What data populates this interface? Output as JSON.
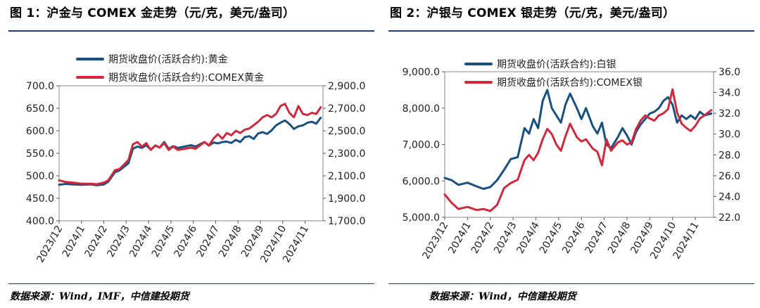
{
  "colors": {
    "blue": "#1a5080",
    "red": "#cc2a3e",
    "rule": "#1b3f73"
  },
  "left": {
    "title": "图 1：沪金与 COMEX 金走势（元/克，美元/盎司）",
    "source": "数据来源：Wind，IMF，中信建投期货"
  },
  "right": {
    "title": "图 2：沪银与 COMEX 银走势（元/克，美元/盎司）",
    "source": "数据来源：Wind，中信建投期货"
  },
  "chart_data": [
    {
      "type": "line",
      "x_tick_labels": [
        "2023/12",
        "2024/1",
        "2024/2",
        "2024/3",
        "2024/4",
        "2024/5",
        "2024/6",
        "2024/7",
        "2024/8",
        "2024/9",
        "2024/10",
        "2024/11"
      ],
      "xlim": [
        0,
        11.8
      ],
      "ylim_left": [
        400,
        700
      ],
      "yticks_left": [
        "400.0",
        "450.0",
        "500.0",
        "550.0",
        "600.0",
        "650.0",
        "700.0"
      ],
      "ylim_right": [
        1700,
        2900
      ],
      "yticks_right": [
        "1,700.0",
        "1,900.0",
        "2,100.0",
        "2,300.0",
        "2,500.0",
        "2,700.0",
        "2,900.0"
      ],
      "legend_position": "top-left",
      "series": [
        {
          "name": "期货收盘价(活跃合约):黄金",
          "axis": "left",
          "color": "#1a5080",
          "x": [
            0.0,
            0.3,
            0.6,
            1.0,
            1.4,
            1.7,
            2.0,
            2.2,
            2.5,
            2.7,
            2.9,
            3.1,
            3.3,
            3.5,
            3.7,
            3.9,
            4.1,
            4.3,
            4.5,
            4.7,
            4.9,
            5.1,
            5.3,
            5.6,
            5.9,
            6.1,
            6.3,
            6.5,
            6.7,
            6.9,
            7.1,
            7.3,
            7.5,
            7.7,
            7.9,
            8.1,
            8.3,
            8.5,
            8.7,
            8.9,
            9.1,
            9.3,
            9.5,
            9.7,
            9.9,
            10.1,
            10.3,
            10.5,
            10.7,
            10.9,
            11.1,
            11.3,
            11.5,
            11.7
          ],
          "y": [
            480,
            482,
            481,
            480,
            481,
            479,
            481,
            487,
            508,
            512,
            520,
            528,
            560,
            565,
            562,
            568,
            558,
            567,
            563,
            575,
            560,
            566,
            562,
            565,
            568,
            565,
            570,
            575,
            567,
            574,
            572,
            575,
            576,
            573,
            580,
            575,
            586,
            588,
            582,
            594,
            597,
            593,
            601,
            612,
            618,
            623,
            615,
            604,
            610,
            612,
            618,
            620,
            616,
            629
          ]
        },
        {
          "name": "期货收盘价(活跃合约):COMEX黄金",
          "axis": "right",
          "color": "#cc2a3e",
          "x": [
            0.0,
            0.3,
            0.6,
            1.0,
            1.4,
            1.7,
            2.0,
            2.2,
            2.5,
            2.7,
            2.9,
            3.1,
            3.3,
            3.5,
            3.7,
            3.9,
            4.1,
            4.3,
            4.5,
            4.7,
            4.9,
            5.1,
            5.3,
            5.6,
            5.9,
            6.1,
            6.3,
            6.5,
            6.7,
            6.9,
            7.1,
            7.3,
            7.5,
            7.7,
            7.9,
            8.1,
            8.3,
            8.5,
            8.7,
            8.9,
            9.1,
            9.3,
            9.5,
            9.7,
            9.9,
            10.1,
            10.3,
            10.5,
            10.7,
            10.9,
            11.1,
            11.3,
            11.5,
            11.7
          ],
          "y": [
            2060,
            2045,
            2040,
            2030,
            2030,
            2025,
            2040,
            2060,
            2150,
            2160,
            2200,
            2240,
            2380,
            2400,
            2360,
            2390,
            2330,
            2370,
            2350,
            2390,
            2330,
            2360,
            2330,
            2340,
            2350,
            2340,
            2370,
            2400,
            2370,
            2430,
            2470,
            2430,
            2480,
            2460,
            2500,
            2480,
            2510,
            2520,
            2550,
            2580,
            2620,
            2640,
            2620,
            2650,
            2720,
            2740,
            2660,
            2620,
            2720,
            2650,
            2640,
            2660,
            2650,
            2710
          ]
        }
      ]
    },
    {
      "type": "line",
      "x_tick_labels": [
        "2023/12",
        "2024/1",
        "2024/2",
        "2024/3",
        "2024/4",
        "2024/5",
        "2024/6",
        "2024/7",
        "2024/8",
        "2024/9",
        "2024/10",
        "2024/11"
      ],
      "xlim": [
        0,
        11.8
      ],
      "ylim_left": [
        5000,
        9000
      ],
      "yticks_left": [
        "5,000.0",
        "6,000.0",
        "7,000.0",
        "8,000.0",
        "9,000.0"
      ],
      "ylim_right": [
        22,
        36
      ],
      "yticks_right": [
        "22.0",
        "24.0",
        "26.0",
        "28.0",
        "30.0",
        "32.0",
        "34.0",
        "36.0"
      ],
      "legend_position": "top-left",
      "series": [
        {
          "name": "期货收盘价(活跃合约):白银",
          "axis": "left",
          "color": "#1a5080",
          "x": [
            0.0,
            0.3,
            0.6,
            1.0,
            1.4,
            1.7,
            2.0,
            2.3,
            2.6,
            2.9,
            3.2,
            3.5,
            3.7,
            3.9,
            4.1,
            4.3,
            4.5,
            4.7,
            4.9,
            5.1,
            5.3,
            5.5,
            5.8,
            6.0,
            6.2,
            6.5,
            6.7,
            6.9,
            7.1,
            7.3,
            7.6,
            7.8,
            8.0,
            8.2,
            8.4,
            8.6,
            8.8,
            9.0,
            9.2,
            9.4,
            9.6,
            9.8,
            10.0,
            10.2,
            10.4,
            10.6,
            10.8,
            11.0,
            11.2,
            11.4,
            11.7
          ],
          "y": [
            6080,
            6020,
            5890,
            5950,
            5850,
            5780,
            5830,
            6020,
            6300,
            6600,
            6650,
            7450,
            7300,
            7700,
            7450,
            8200,
            8500,
            8000,
            7800,
            7600,
            8100,
            8400,
            8000,
            7700,
            8000,
            7500,
            7300,
            7600,
            7000,
            6900,
            7200,
            7450,
            7250,
            7000,
            7350,
            7550,
            7700,
            7850,
            7900,
            8000,
            8200,
            8300,
            8100,
            7600,
            7800,
            7700,
            7800,
            7700,
            7900,
            7800,
            7850
          ]
        },
        {
          "name": "期货收盘价(活跃合约):COMEX银",
          "axis": "right",
          "color": "#cc2a3e",
          "x": [
            0.0,
            0.3,
            0.6,
            1.0,
            1.4,
            1.7,
            2.0,
            2.3,
            2.6,
            2.9,
            3.2,
            3.5,
            3.7,
            3.9,
            4.1,
            4.3,
            4.5,
            4.7,
            4.9,
            5.1,
            5.3,
            5.5,
            5.8,
            6.0,
            6.2,
            6.5,
            6.7,
            6.9,
            7.1,
            7.3,
            7.6,
            7.8,
            8.0,
            8.2,
            8.4,
            8.6,
            8.8,
            9.0,
            9.2,
            9.4,
            9.6,
            9.8,
            10.0,
            10.2,
            10.4,
            10.6,
            10.8,
            11.0,
            11.2,
            11.4,
            11.7
          ],
          "y": [
            24.2,
            23.4,
            22.8,
            23.0,
            22.7,
            22.8,
            22.6,
            23.2,
            24.8,
            25.3,
            25.6,
            27.5,
            28.0,
            27.5,
            28.2,
            29.5,
            30.5,
            30.0,
            29.0,
            28.4,
            29.8,
            31.0,
            29.7,
            29.3,
            29.5,
            28.6,
            28.3,
            27.0,
            29.5,
            28.4,
            29.2,
            29.4,
            29.0,
            29.2,
            30.5,
            31.3,
            31.8,
            31.5,
            31.3,
            31.8,
            32.0,
            32.4,
            34.3,
            32.1,
            31.0,
            30.6,
            30.3,
            30.8,
            31.5,
            31.8,
            32.3
          ]
        }
      ]
    }
  ]
}
